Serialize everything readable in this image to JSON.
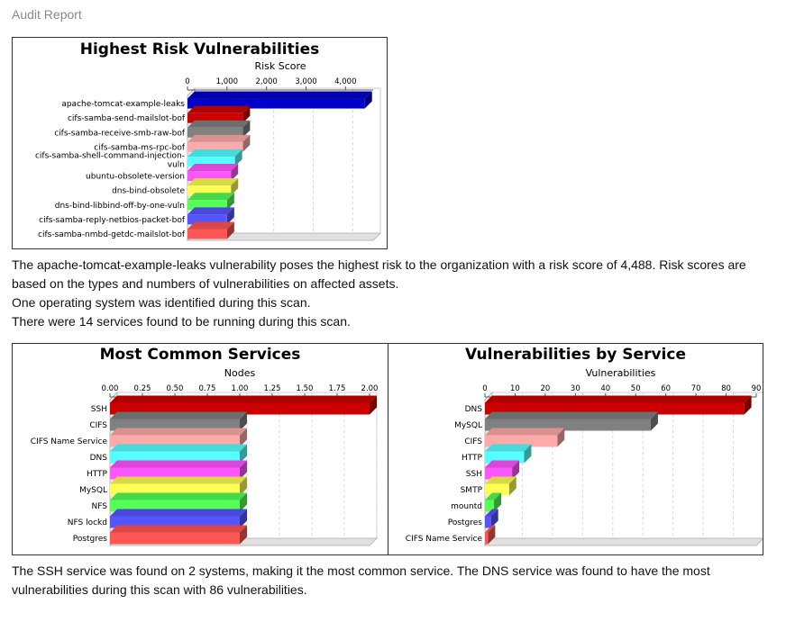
{
  "header": {
    "title": "Audit Report"
  },
  "text": {
    "summary_risk": "The apache-tomcat-example-leaks vulnerability poses the highest risk to the organization with a risk score of 4,488. Risk scores are based on the types and numbers of vulnerabilities on affected assets.",
    "summary_os": "One operating system was identified during this scan.",
    "summary_services": "There were 14 services found to be running during this scan.",
    "summary_common": "The SSH service was found on 2 systems, making it the most common service. The DNS service was found to have the most vulnerabilities during this scan with 86 vulnerabilities."
  },
  "chart_data": [
    {
      "type": "bar",
      "orientation": "horizontal",
      "title": "Highest Risk Vulnerabilities",
      "xlabel": "Risk Score",
      "xlim": [
        0,
        4700
      ],
      "ticks": [
        0,
        1000,
        2000,
        3000,
        4000
      ],
      "tick_labels": [
        "0",
        "1,000",
        "2,000",
        "3,000",
        "4,000"
      ],
      "categories": [
        "apache-tomcat-example-leaks",
        "cifs-samba-send-mailslot-bof",
        "cifs-samba-receive-smb-raw-bof",
        "cifs-samba-ms-rpc-bof",
        "cifs-samba-shell-command-injection-vuln",
        "ubuntu-obsolete-version",
        "dns-bind-obsolete",
        "dns-bind-libbind-off-by-one-vuln",
        "cifs-samba-reply-netbios-packet-bof",
        "cifs-samba-nmbd-getdc-mailslot-bof"
      ],
      "category_lines": [
        [
          "apache-tomcat-example-leaks"
        ],
        [
          "cifs-samba-send-mailslot-bof"
        ],
        [
          "cifs-samba-receive-smb-raw-bof"
        ],
        [
          "cifs-samba-ms-rpc-bof"
        ],
        [
          "cifs-samba-shell-command-injection-",
          "vuln"
        ],
        [
          "ubuntu-obsolete-version"
        ],
        [
          "dns-bind-obsolete"
        ],
        [
          "dns-bind-libbind-off-by-one-vuln"
        ],
        [
          "cifs-samba-reply-netbios-packet-bof"
        ],
        [
          "cifs-samba-nmbd-getdc-mailslot-bof"
        ]
      ],
      "values": [
        4488,
        1400,
        1400,
        1400,
        1200,
        1100,
        1100,
        1000,
        1000,
        1000
      ],
      "colors": [
        "#0000cc",
        "#cc0000",
        "#808080",
        "#ffaaaa",
        "#55ffff",
        "#ff55ff",
        "#ffff55",
        "#55ff55",
        "#5555ff",
        "#ff5555"
      ],
      "grid": true
    },
    {
      "type": "bar",
      "orientation": "horizontal",
      "title": "Most Common Services",
      "xlabel": "Nodes",
      "xlim": [
        0,
        2.0
      ],
      "ticks": [
        0,
        0.25,
        0.5,
        0.75,
        1.0,
        1.25,
        1.5,
        1.75,
        2.0
      ],
      "tick_labels": [
        "0.00",
        "0.25",
        "0.50",
        "0.75",
        "1.00",
        "1.25",
        "1.50",
        "1.75",
        "2.00"
      ],
      "categories": [
        "SSH",
        "CIFS",
        "CIFS Name Service",
        "DNS",
        "HTTP",
        "MySQL",
        "NFS",
        "NFS lockd",
        "Postgres"
      ],
      "values": [
        2,
        1,
        1,
        1,
        1,
        1,
        1,
        1,
        1
      ],
      "colors": [
        "#cc0000",
        "#808080",
        "#ffaaaa",
        "#55ffff",
        "#ff55ff",
        "#ffff55",
        "#55ff55",
        "#5555ff",
        "#ff5555"
      ],
      "grid": true
    },
    {
      "type": "bar",
      "orientation": "horizontal",
      "title": "Vulnerabilities by Service",
      "xlabel": "Vulnerabilities",
      "xlim": [
        0,
        90
      ],
      "ticks": [
        0,
        10,
        20,
        30,
        40,
        50,
        60,
        70,
        80,
        90
      ],
      "tick_labels": [
        "0",
        "10",
        "20",
        "30",
        "40",
        "50",
        "60",
        "70",
        "80",
        "90"
      ],
      "categories": [
        "DNS",
        "MySQL",
        "CIFS",
        "HTTP",
        "SSH",
        "SMTP",
        "mountd",
        "Postgres",
        "CIFS Name Service"
      ],
      "values": [
        86,
        55,
        24,
        13,
        9,
        8,
        3,
        2,
        1
      ],
      "colors": [
        "#cc0000",
        "#808080",
        "#ffaaaa",
        "#55ffff",
        "#ff55ff",
        "#ffff55",
        "#55ff55",
        "#5555ff",
        "#ff5555"
      ],
      "grid": true
    }
  ]
}
